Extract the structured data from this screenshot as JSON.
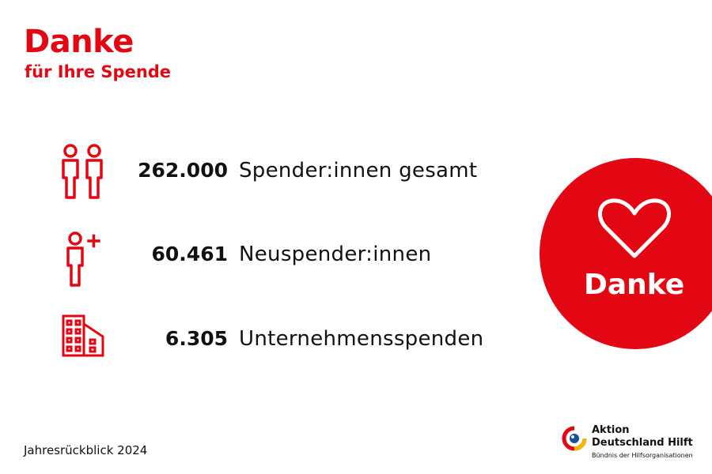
{
  "header": {
    "title": "Danke",
    "subtitle": "für Ihre Spende"
  },
  "stats": [
    {
      "value": "262.000",
      "label": "Spender:innen gesamt",
      "icon": "two-people-icon"
    },
    {
      "value": "60.461",
      "label": "Neuspender:innen",
      "icon": "person-plus-icon"
    },
    {
      "value": "6.305",
      "label": "Unternehmensspenden",
      "icon": "building-icon"
    }
  ],
  "badge": {
    "text": "Danke",
    "icon": "heart-icon"
  },
  "footer": {
    "label": "Jahresrückblick 2024"
  },
  "logo": {
    "line1": "Aktion",
    "line2": "Deutschland Hilft",
    "tagline": "Bündnis der Hilfsorganisationen"
  },
  "colors": {
    "accent": "#e30613",
    "text": "#111111",
    "background": "#ffffff"
  }
}
